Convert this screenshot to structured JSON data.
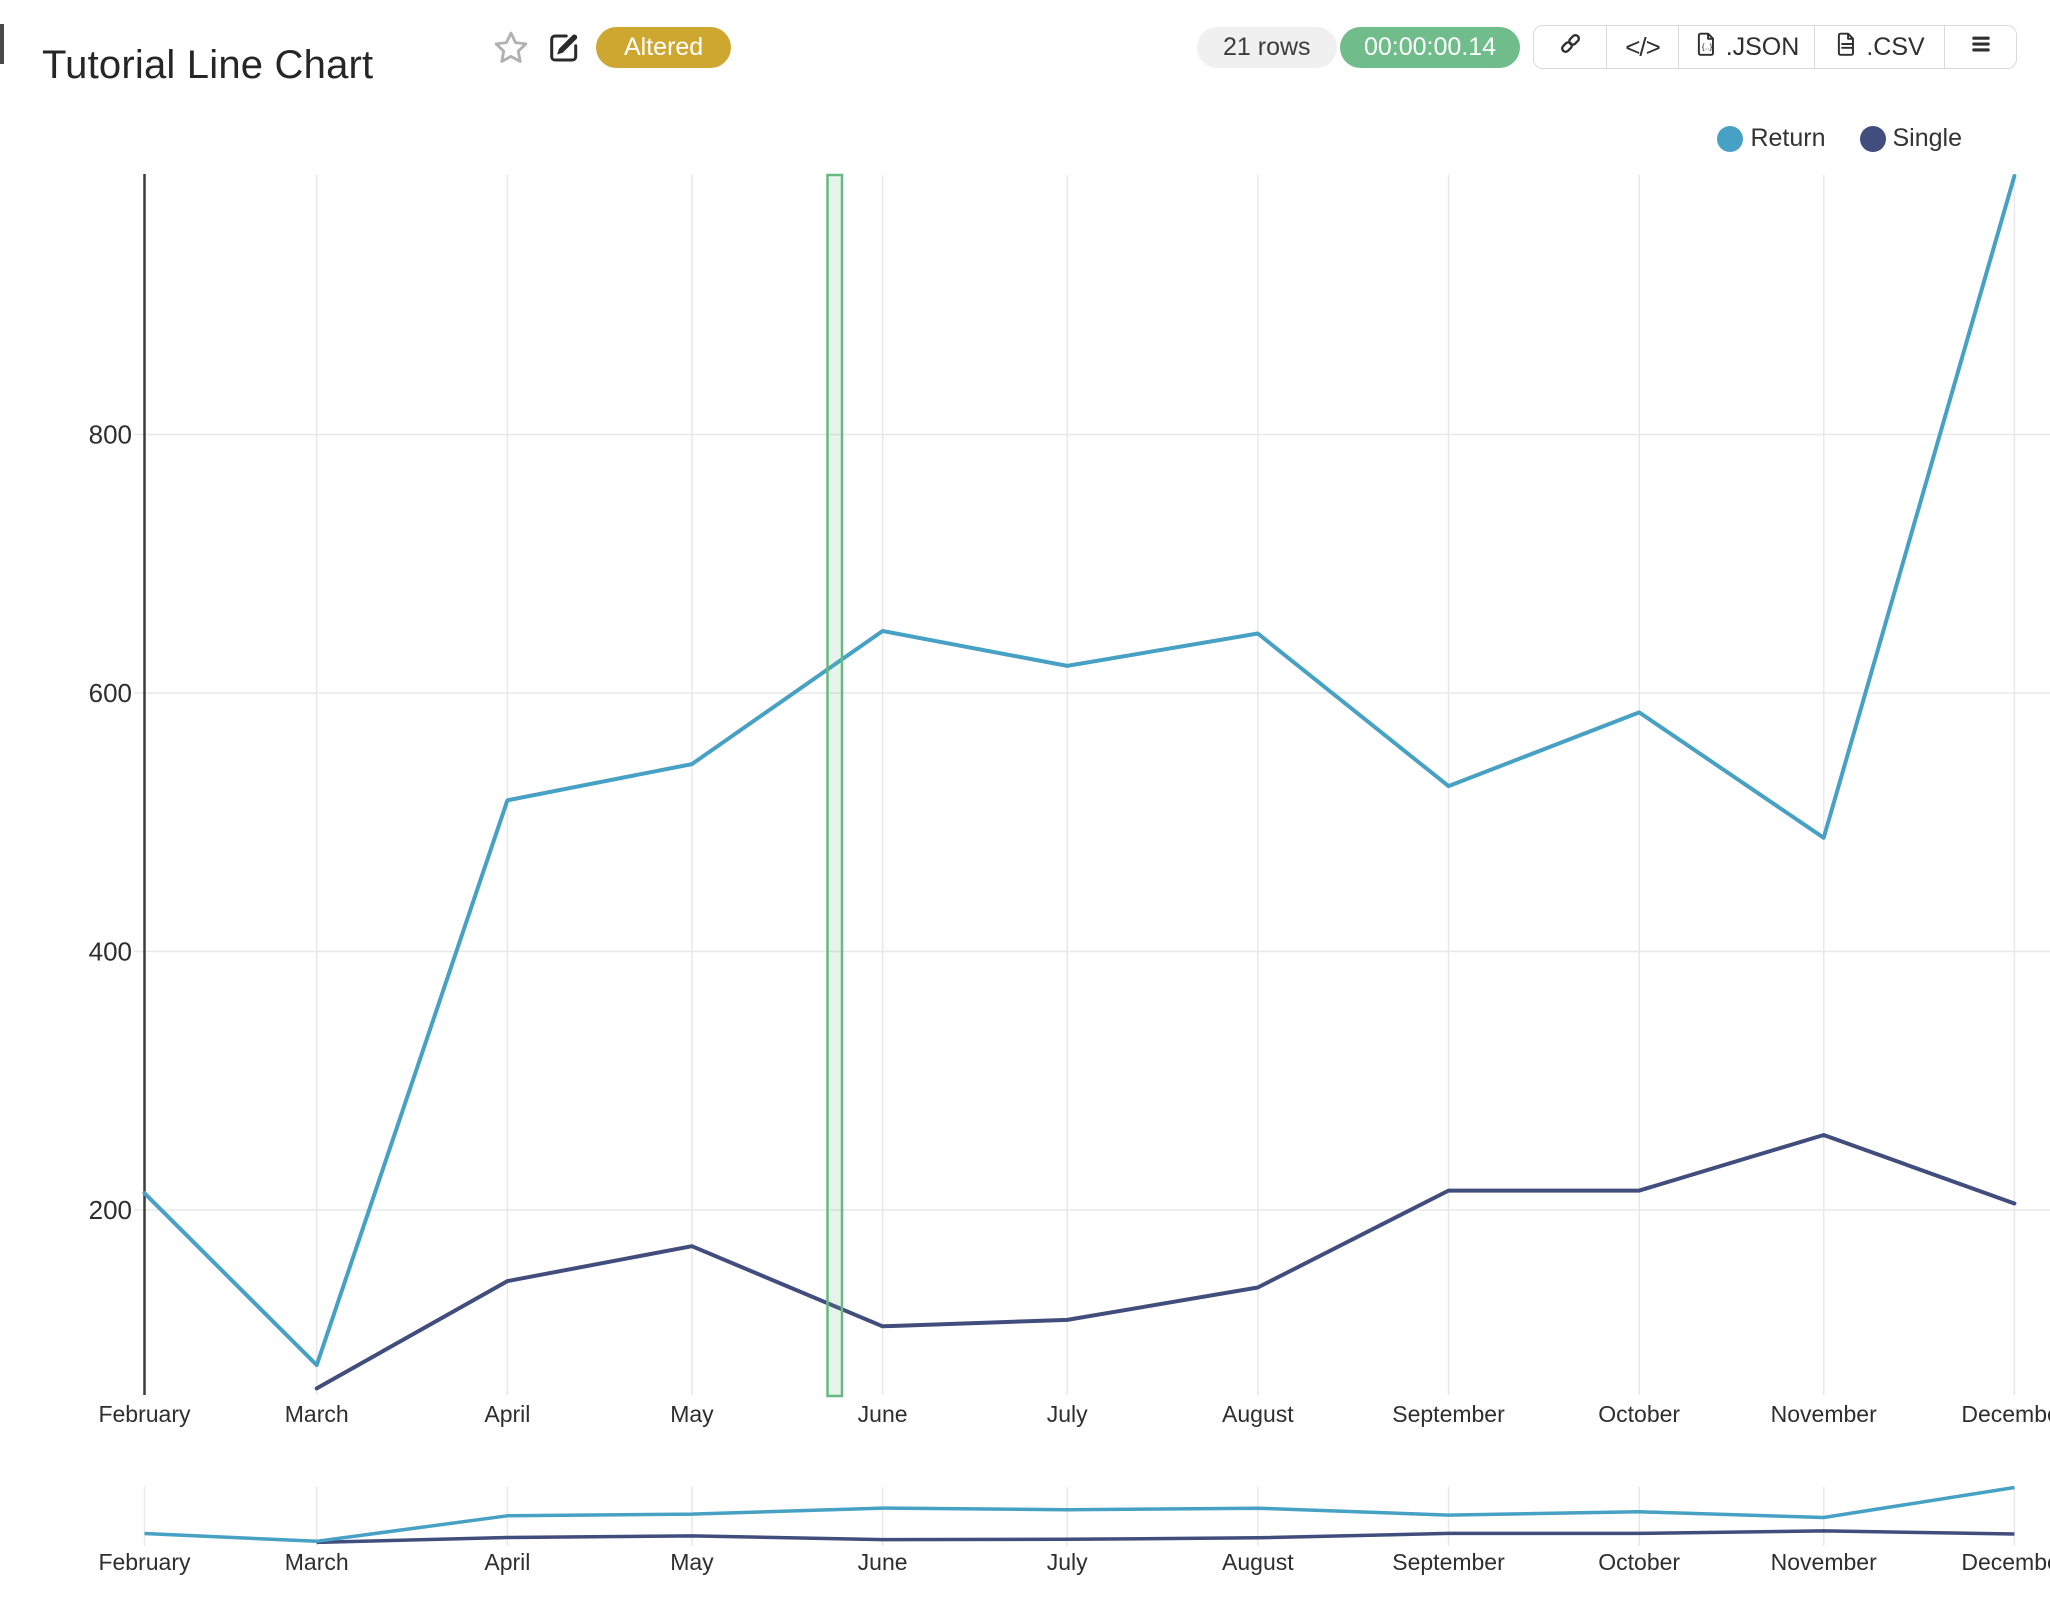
{
  "header": {
    "title": "Tutorial Line Chart",
    "badges": {
      "altered": "Altered",
      "rows": "21 rows",
      "timer": "00:00:00.14"
    },
    "toolbar": {
      "code_label": "</>",
      "json_label": ".JSON",
      "csv_label": ".CSV"
    }
  },
  "legend": {
    "items": [
      {
        "label": "Return",
        "color": "#47a1c4"
      },
      {
        "label": "Single",
        "color": "#414d7d"
      }
    ]
  },
  "colors": {
    "return_line": "#47a1c4",
    "single_line": "#414d7d",
    "grid": "#e8e8e8",
    "axis": "#3c3c3c",
    "axis_text": "#2e2e2e",
    "highlight_border": "#68b981",
    "highlight_fill": "rgba(104,185,129,0.16)",
    "altered_badge": "#cda72f",
    "timer_badge": "#70bd8b",
    "rows_badge": "#f0f0f0"
  },
  "chart_data": {
    "type": "line",
    "title": "Tutorial Line Chart",
    "xlabel": "",
    "ylabel": "",
    "x_axis_type": "time (monthly)",
    "categories": [
      "February",
      "March",
      "April",
      "May",
      "June",
      "July",
      "August",
      "September",
      "October",
      "November",
      "December"
    ],
    "series": [
      {
        "name": "Return",
        "color": "#47a1c4",
        "values": [
          213,
          80,
          517,
          545,
          648,
          621,
          646,
          528,
          585,
          488,
          1000
        ]
      },
      {
        "name": "Single",
        "color": "#414d7d",
        "values": [
          null,
          62,
          145,
          172,
          110,
          115,
          140,
          215,
          215,
          258,
          205
        ]
      }
    ],
    "y_ticks": [
      200,
      400,
      600,
      800
    ],
    "ylim": [
      55,
      990
    ],
    "grid": true,
    "legend_position": "top-right",
    "highlight_region": {
      "between": [
        "May",
        "June"
      ],
      "note": "thin green vertical selection band"
    },
    "mini_chart": {
      "role": "zoom-navigator",
      "same_series": true,
      "labels_repeated_below": true
    }
  }
}
